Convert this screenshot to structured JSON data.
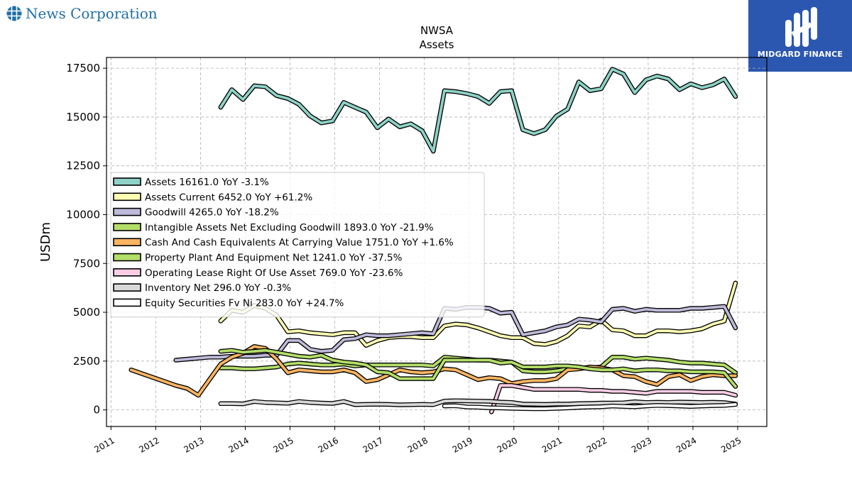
{
  "brand": {
    "name": "News Corporation",
    "icon": "globe-grid-icon",
    "color": "#1f6fa8"
  },
  "watermark": {
    "label": "MIDGARD FINANCE",
    "icon": "midgard-logo-icon",
    "background": "#2b57b0"
  },
  "chart_data": {
    "type": "line",
    "title": "NWSA",
    "subtitle": "Assets",
    "xlabel": "",
    "ylabel": "USDm",
    "xlim": [
      2010.9,
      2025.65
    ],
    "ylim": [
      -850,
      18050
    ],
    "x_ticks": [
      "2011",
      "2012",
      "2013",
      "2014",
      "2015",
      "2016",
      "2017",
      "2018",
      "2019",
      "2020",
      "2021",
      "2022",
      "2023",
      "2024",
      "2025"
    ],
    "y_ticks": [
      0,
      2500,
      5000,
      7500,
      10000,
      12500,
      15000,
      17500
    ],
    "y_tick_labels": [
      "0",
      "2500",
      "5000",
      "7500",
      "10000",
      "12500",
      "15000",
      "17500"
    ],
    "grid": true,
    "legend_position": "center-left",
    "series": [
      {
        "name": "Assets",
        "legend": "Assets  16161.0 YoY -3.1%",
        "color": "#8dd3c7",
        "x": [
          2013.45,
          2013.7,
          2013.95,
          2014.2,
          2014.45,
          2014.7,
          2014.95,
          2015.2,
          2015.45,
          2015.7,
          2015.95,
          2016.2,
          2016.45,
          2016.7,
          2016.95,
          2017.2,
          2017.45,
          2017.7,
          2017.95,
          2018.2,
          2018.45,
          2018.7,
          2018.95,
          2019.2,
          2019.45,
          2019.7,
          2019.95,
          2020.2,
          2020.45,
          2020.7,
          2020.95,
          2021.2,
          2021.45,
          2021.7,
          2021.95,
          2022.2,
          2022.45,
          2022.7,
          2022.95,
          2023.2,
          2023.45,
          2023.7,
          2023.95,
          2024.2,
          2024.45,
          2024.7,
          2024.95
        ],
        "y": [
          15500,
          16400,
          15900,
          16600,
          16550,
          16100,
          15950,
          15650,
          15050,
          14700,
          14800,
          15750,
          15500,
          15250,
          14450,
          14900,
          14500,
          14650,
          14300,
          13250,
          16350,
          16300,
          16200,
          16050,
          15700,
          16300,
          16350,
          14350,
          14150,
          14350,
          15050,
          15400,
          16800,
          16350,
          16450,
          17450,
          17200,
          16250,
          16900,
          17100,
          16950,
          16400,
          16700,
          16500,
          16650,
          16950,
          16050
        ]
      },
      {
        "name": "Assets Current",
        "legend": "Assets Current  6452.0 YoY +61.2%",
        "color": "#ffffb3",
        "x": [
          2013.45,
          2013.7,
          2013.95,
          2014.2,
          2014.45,
          2014.7,
          2014.95,
          2015.2,
          2015.45,
          2015.7,
          2015.95,
          2016.2,
          2016.45,
          2016.7,
          2016.95,
          2017.2,
          2017.45,
          2017.7,
          2017.95,
          2018.2,
          2018.45,
          2018.7,
          2018.95,
          2019.2,
          2019.45,
          2019.7,
          2019.95,
          2020.2,
          2020.45,
          2020.7,
          2020.95,
          2021.2,
          2021.45,
          2021.7,
          2021.95,
          2022.2,
          2022.45,
          2022.7,
          2022.95,
          2023.2,
          2023.45,
          2023.7,
          2023.95,
          2024.2,
          2024.45,
          2024.7,
          2024.95
        ],
        "y": [
          4550,
          5100,
          5000,
          5350,
          5200,
          4850,
          4000,
          4050,
          3950,
          3900,
          3850,
          3950,
          3950,
          3300,
          3550,
          3700,
          3750,
          3750,
          3700,
          3700,
          4300,
          4400,
          4350,
          4200,
          4000,
          3800,
          3700,
          3700,
          3400,
          3350,
          3500,
          3800,
          4300,
          4250,
          4600,
          4100,
          4050,
          3800,
          3800,
          4050,
          4050,
          4000,
          4050,
          4150,
          4400,
          4550,
          6500
        ]
      },
      {
        "name": "Goodwill",
        "legend": "Goodwill  4265.0 YoY -18.2%",
        "color": "#bebada",
        "x": [
          2012.45,
          2012.7,
          2012.95,
          2013.2,
          2013.45,
          2013.7,
          2013.95,
          2014.2,
          2014.45,
          2014.7,
          2014.95,
          2015.2,
          2015.45,
          2015.7,
          2015.95,
          2016.2,
          2016.45,
          2016.7,
          2016.95,
          2017.2,
          2017.45,
          2017.7,
          2017.95,
          2018.2,
          2018.45,
          2018.7,
          2018.95,
          2019.2,
          2019.45,
          2019.7,
          2019.95,
          2020.2,
          2020.45,
          2020.7,
          2020.95,
          2021.2,
          2021.45,
          2021.7,
          2021.95,
          2022.2,
          2022.45,
          2022.7,
          2022.95,
          2023.2,
          2023.45,
          2023.7,
          2023.95,
          2024.2,
          2024.45,
          2024.7,
          2024.95
        ],
        "y": [
          2550,
          2600,
          2650,
          2700,
          2700,
          2750,
          2750,
          2750,
          2800,
          2800,
          3550,
          3550,
          3100,
          3000,
          3050,
          3600,
          3650,
          3850,
          3800,
          3800,
          3850,
          3900,
          3950,
          3900,
          5200,
          5150,
          5250,
          5250,
          5200,
          4950,
          5000,
          3850,
          3950,
          4050,
          4250,
          4350,
          4650,
          4600,
          4500,
          5150,
          5200,
          5050,
          5150,
          5100,
          5100,
          5100,
          5200,
          5200,
          5250,
          5300,
          4200
        ]
      },
      {
        "name": "Intangible Assets Net Excluding Goodwill",
        "legend": "Intangible Assets Net Excluding Goodwill  1893.0 YoY -21.9%",
        "color": "#b3de69",
        "x": [
          2013.45,
          2013.7,
          2013.95,
          2014.2,
          2014.45,
          2014.7,
          2014.95,
          2015.2,
          2015.45,
          2015.7,
          2015.95,
          2016.2,
          2016.45,
          2016.7,
          2016.95,
          2017.2,
          2017.45,
          2017.7,
          2017.95,
          2018.2,
          2018.45,
          2018.7,
          2018.95,
          2019.2,
          2019.45,
          2019.7,
          2019.95,
          2020.2,
          2020.45,
          2020.7,
          2020.95,
          2021.2,
          2021.45,
          2021.7,
          2021.95,
          2022.2,
          2022.45,
          2022.7,
          2022.95,
          2023.2,
          2023.45,
          2023.7,
          2023.95,
          2024.2,
          2024.45,
          2024.7,
          2024.95
        ],
        "y": [
          2150,
          2150,
          2100,
          2100,
          2150,
          2200,
          2350,
          2400,
          2350,
          2300,
          2300,
          2350,
          2250,
          2300,
          2300,
          2300,
          2300,
          2300,
          2300,
          2250,
          2700,
          2650,
          2600,
          2550,
          2550,
          2500,
          2450,
          2000,
          1950,
          1950,
          2000,
          2100,
          2150,
          2150,
          2200,
          2700,
          2700,
          2600,
          2650,
          2600,
          2550,
          2450,
          2400,
          2400,
          2350,
          2300,
          1900
        ]
      },
      {
        "name": "Cash And Cash Equivalents At Carrying Value",
        "legend": "Cash And Cash Equivalents At Carrying Value  1751.0 YoY +1.6%",
        "color": "#fdb462",
        "x": [
          2011.45,
          2011.7,
          2011.95,
          2012.2,
          2012.45,
          2012.7,
          2012.95,
          2013.2,
          2013.45,
          2013.7,
          2013.95,
          2014.2,
          2014.45,
          2014.7,
          2014.95,
          2015.2,
          2015.45,
          2015.7,
          2015.95,
          2016.2,
          2016.45,
          2016.7,
          2016.95,
          2017.2,
          2017.45,
          2017.7,
          2017.95,
          2018.2,
          2018.45,
          2018.7,
          2018.95,
          2019.2,
          2019.45,
          2019.7,
          2019.95,
          2020.2,
          2020.45,
          2020.7,
          2020.95,
          2021.2,
          2021.45,
          2021.7,
          2021.95,
          2022.2,
          2022.45,
          2022.7,
          2022.95,
          2023.2,
          2023.45,
          2023.7,
          2023.95,
          2024.2,
          2024.45,
          2024.7,
          2024.95
        ],
        "y": [
          2050,
          1850,
          1650,
          1450,
          1250,
          1100,
          750,
          1550,
          2350,
          2700,
          2900,
          3250,
          3150,
          2600,
          1900,
          2050,
          2000,
          1950,
          1950,
          2050,
          1900,
          1450,
          1550,
          1800,
          2050,
          1950,
          1900,
          1950,
          2100,
          2050,
          1800,
          1550,
          1650,
          1600,
          1350,
          1450,
          1500,
          1500,
          1600,
          2050,
          2100,
          2200,
          2150,
          2050,
          1750,
          1700,
          1450,
          1300,
          1700,
          1800,
          1500,
          1700,
          1800,
          1750,
          1750
        ]
      },
      {
        "name": "Property Plant And Equipment Net",
        "legend": "Property Plant And Equipment Net  1241.0 YoY -37.5%",
        "color": "#b3de69",
        "x": [
          2013.45,
          2013.7,
          2013.95,
          2014.2,
          2014.45,
          2014.7,
          2014.95,
          2015.2,
          2015.45,
          2015.7,
          2015.95,
          2016.2,
          2016.45,
          2016.7,
          2016.95,
          2017.2,
          2017.45,
          2017.7,
          2017.95,
          2018.2,
          2018.45,
          2018.7,
          2018.95,
          2019.2,
          2019.45,
          2019.7,
          2019.95,
          2020.2,
          2020.45,
          2020.7,
          2020.95,
          2021.2,
          2021.45,
          2021.7,
          2021.95,
          2022.2,
          2022.45,
          2022.7,
          2022.95,
          2023.2,
          2023.45,
          2023.7,
          2023.95,
          2024.2,
          2024.45,
          2024.7,
          2024.95
        ],
        "y": [
          3000,
          3050,
          2950,
          3000,
          3050,
          2950,
          2850,
          2750,
          2700,
          2800,
          2550,
          2450,
          2400,
          2300,
          1950,
          1900,
          1600,
          1600,
          1600,
          1600,
          2550,
          2550,
          2550,
          2550,
          2550,
          2400,
          2450,
          2200,
          2200,
          2200,
          2250,
          2250,
          2200,
          2100,
          2050,
          2050,
          2100,
          2000,
          2050,
          2050,
          2000,
          2000,
          1950,
          1950,
          1950,
          1900,
          1200
        ]
      },
      {
        "name": "Operating Lease Right Of Use Asset",
        "legend": "Operating Lease Right Of Use Asset  769.0 YoY -23.6%",
        "color": "#fccde5",
        "x": [
          2019.5,
          2019.7,
          2019.95,
          2020.2,
          2020.45,
          2020.7,
          2020.95,
          2021.2,
          2021.45,
          2021.7,
          2021.95,
          2022.2,
          2022.45,
          2022.7,
          2022.95,
          2023.2,
          2023.45,
          2023.7,
          2023.95,
          2024.2,
          2024.45,
          2024.7,
          2024.95
        ],
        "y": [
          -100,
          1250,
          1250,
          1150,
          1050,
          1050,
          1050,
          1050,
          1050,
          1000,
          1000,
          950,
          950,
          900,
          850,
          950,
          950,
          950,
          950,
          900,
          900,
          900,
          750
        ]
      },
      {
        "name": "Inventory Net",
        "legend": "Inventory Net  296.0 YoY -0.3%",
        "color": "#d9d9d9",
        "x": [
          2013.45,
          2013.7,
          2013.95,
          2014.2,
          2014.45,
          2014.7,
          2014.95,
          2015.2,
          2015.45,
          2015.7,
          2015.95,
          2016.2,
          2016.45,
          2016.7,
          2016.95,
          2017.2,
          2017.45,
          2017.7,
          2017.95,
          2018.2,
          2018.45,
          2018.7,
          2018.95,
          2019.2,
          2019.45,
          2019.7,
          2019.95,
          2020.2,
          2020.45,
          2020.7,
          2020.95,
          2021.2,
          2021.45,
          2021.7,
          2021.95,
          2022.2,
          2022.45,
          2022.7,
          2022.95,
          2023.2,
          2023.45,
          2023.7,
          2023.95,
          2024.2,
          2024.45,
          2024.7,
          2024.95
        ],
        "y": [
          320,
          320,
          310,
          430,
          380,
          360,
          340,
          430,
          380,
          350,
          330,
          430,
          270,
          280,
          290,
          280,
          260,
          270,
          280,
          270,
          450,
          470,
          460,
          450,
          440,
          400,
          380,
          300,
          290,
          280,
          300,
          300,
          320,
          330,
          350,
          350,
          360,
          420,
          380,
          390,
          380,
          400,
          390,
          380,
          390,
          370,
          300
        ]
      },
      {
        "name": "Equity Securities Fv Ni",
        "legend": "Equity Securities Fv Ni  283.0 YoY +24.7%",
        "color": "#ffffff",
        "x": [
          2018.45,
          2018.7,
          2018.95,
          2019.2,
          2019.45,
          2019.7,
          2019.95,
          2020.2,
          2020.45,
          2020.7,
          2020.95,
          2021.2,
          2021.45,
          2021.7,
          2021.95,
          2022.2,
          2022.45,
          2022.7,
          2022.95,
          2023.2,
          2023.45,
          2023.7,
          2023.95,
          2024.2,
          2024.45,
          2024.7,
          2024.95
        ],
        "y": [
          200,
          210,
          150,
          140,
          110,
          100,
          80,
          70,
          60,
          60,
          80,
          100,
          130,
          150,
          160,
          200,
          180,
          160,
          200,
          230,
          220,
          200,
          180,
          200,
          220,
          230,
          280
        ]
      }
    ]
  }
}
